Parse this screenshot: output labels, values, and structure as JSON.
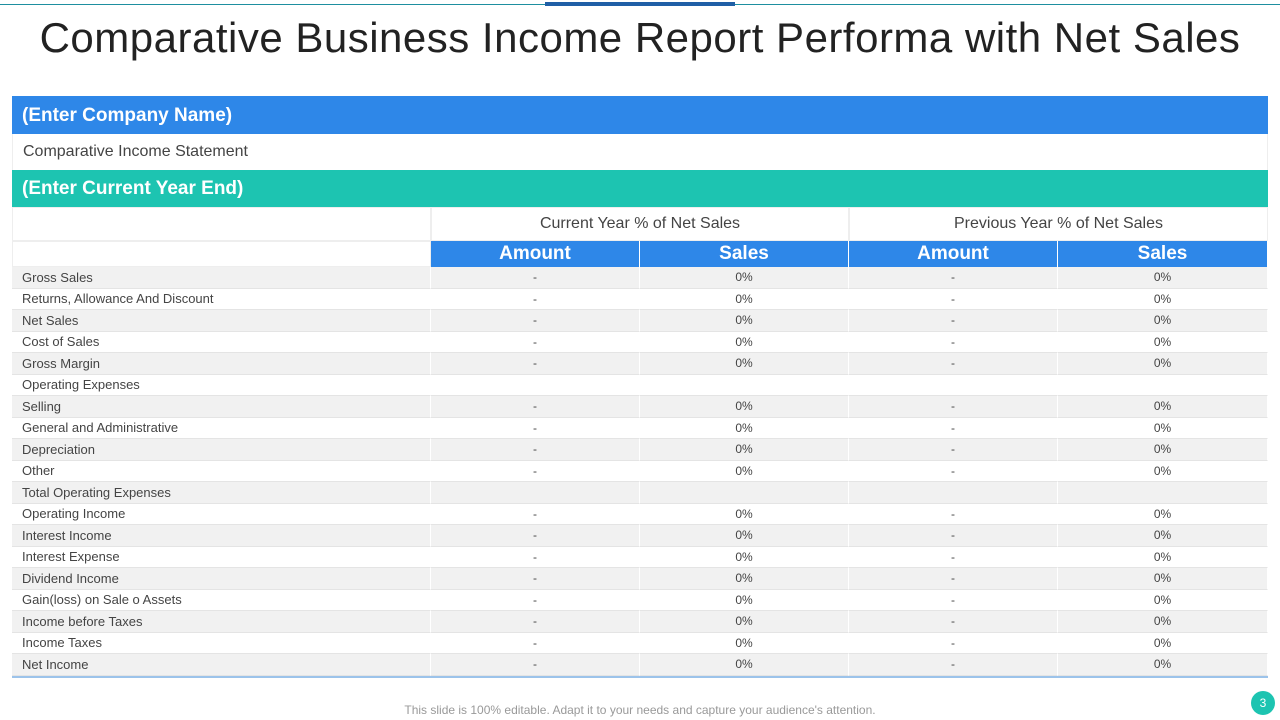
{
  "title": "Comparative Business Income Report Performa with Net Sales",
  "company_name": "(Enter Company Name)",
  "statement": "Comparative Income Statement",
  "year_end": "(Enter Current Year End)",
  "table": {
    "groups": [
      "Current Year % of Net Sales",
      "Previous Year % of Net Sales"
    ],
    "columns": [
      "Amount",
      "Sales",
      "Amount",
      "Sales"
    ],
    "rows": [
      [
        "Gross Sales",
        "-",
        "0%",
        "-",
        "0%"
      ],
      [
        "Returns, Allowance And Discount",
        "-",
        "0%",
        "-",
        "0%"
      ],
      [
        "Net Sales",
        "-",
        "0%",
        "-",
        "0%"
      ],
      [
        "Cost of Sales",
        "-",
        "0%",
        "-",
        "0%"
      ],
      [
        "Gross Margin",
        "-",
        "0%",
        "-",
        "0%"
      ],
      [
        "Operating Expenses"
      ],
      [
        "Selling",
        "-",
        "0%",
        "-",
        "0%"
      ],
      [
        "General and Administrative",
        "-",
        "0%",
        "-",
        "0%"
      ],
      [
        "Depreciation",
        "-",
        "0%",
        "-",
        "0%"
      ],
      [
        "Other",
        "-",
        "0%",
        "-",
        "0%"
      ],
      [
        "Total Operating Expenses"
      ],
      [
        "Operating Income",
        "-",
        "0%",
        "-",
        "0%"
      ],
      [
        "Interest Income",
        "-",
        "0%",
        "-",
        "0%"
      ],
      [
        "Interest Expense",
        "-",
        "0%",
        "-",
        "0%"
      ],
      [
        "Dividend Income",
        "-",
        "0%",
        "-",
        "0%"
      ],
      [
        "Gain(loss) on Sale o Assets",
        "-",
        "0%",
        "-",
        "0%"
      ],
      [
        "Income before Taxes",
        "-",
        "0%",
        "-",
        "0%"
      ],
      [
        "Income Taxes",
        "-",
        "0%",
        "-",
        "0%"
      ],
      [
        "Net Income",
        "-",
        "0%",
        "-",
        "0%"
      ]
    ]
  },
  "footer": "This slide is 100% editable. Adapt it to your needs and capture your audience's attention.",
  "page_number": "3"
}
